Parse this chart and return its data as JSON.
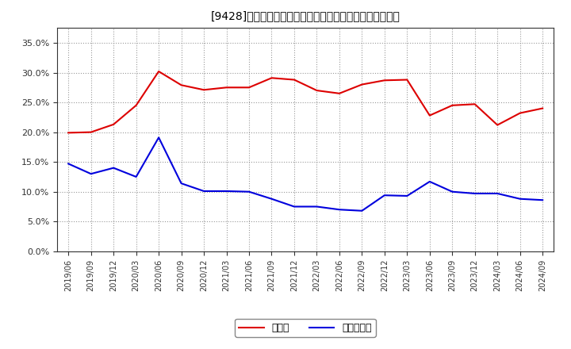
{
  "title": "[9428]　現須金、有利子負債の総資産に対する比率の推移",
  "dates": [
    "2019/06",
    "2019/09",
    "2019/12",
    "2020/03",
    "2020/06",
    "2020/09",
    "2020/12",
    "2021/03",
    "2021/06",
    "2021/09",
    "2021/12",
    "2022/03",
    "2022/06",
    "2022/09",
    "2022/12",
    "2023/03",
    "2023/06",
    "2023/09",
    "2023/12",
    "2024/03",
    "2024/06",
    "2024/09"
  ],
  "cash": [
    0.199,
    0.2,
    0.213,
    0.245,
    0.302,
    0.279,
    0.271,
    0.275,
    0.275,
    0.291,
    0.288,
    0.27,
    0.265,
    0.28,
    0.287,
    0.288,
    0.228,
    0.245,
    0.247,
    0.212,
    0.232,
    0.24
  ],
  "debt": [
    0.147,
    0.13,
    0.14,
    0.125,
    0.191,
    0.114,
    0.101,
    0.101,
    0.1,
    0.088,
    0.075,
    0.075,
    0.07,
    0.068,
    0.094,
    0.093,
    0.117,
    0.1,
    0.097,
    0.097,
    0.088,
    0.086
  ],
  "cash_color": "#dd0000",
  "debt_color": "#0000dd",
  "legend_cash": "現須金",
  "legend_debt": "有利子負債",
  "background_color": "#ffffff",
  "grid_color": "#999999",
  "ylim": [
    0.0,
    0.375
  ],
  "yticks": [
    0.0,
    0.05,
    0.1,
    0.15,
    0.2,
    0.25,
    0.3,
    0.35
  ]
}
